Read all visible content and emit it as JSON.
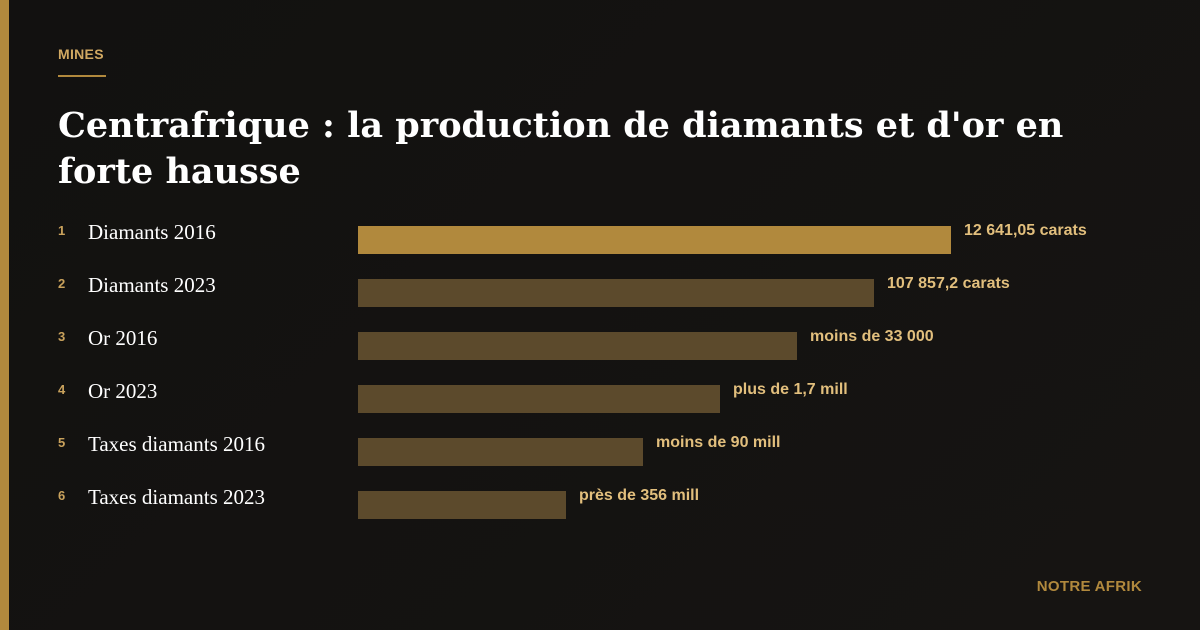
{
  "kicker": "MINES",
  "title": "Centrafrique : la production de diamants et d'or en forte hausse",
  "footer": "NOTRE AFRIK",
  "colors": {
    "accent": "#b1893d",
    "bar_highlight": "#b1893d",
    "bar_default": "#5c4a2c",
    "value_text": "#e2bf7d"
  },
  "chart_data": {
    "type": "bar",
    "orientation": "horizontal",
    "categories": [
      "Diamants 2016",
      "Diamants 2023",
      "Or 2016",
      "Or 2023",
      "Taxes diamants 2016",
      "Taxes diamants 2023"
    ],
    "ranks": [
      "1",
      "2",
      "3",
      "4",
      "5",
      "6"
    ],
    "value_labels": [
      "12 641,05 carats",
      "107 857,2 carats",
      "moins de 33 000",
      "plus de 1,7 mill",
      "moins de 90 mill",
      "près de 356 mill"
    ],
    "values": [
      100,
      87,
      74,
      61,
      48,
      35
    ],
    "grid": false,
    "legend": "none"
  }
}
